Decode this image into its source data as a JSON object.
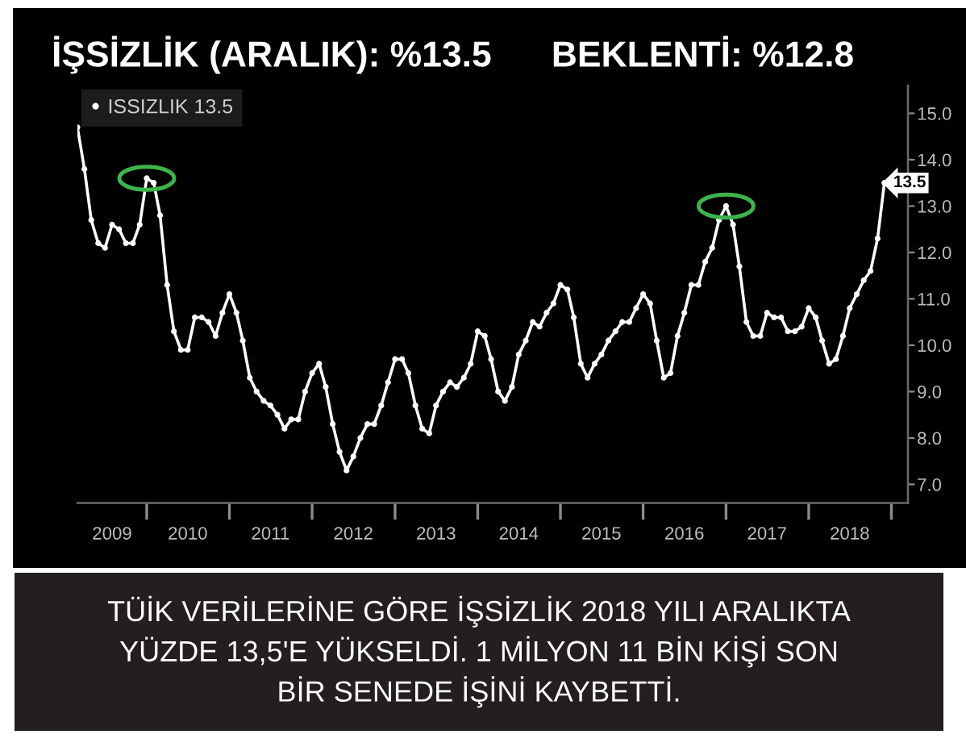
{
  "chart_data": {
    "type": "line",
    "title": "İŞSİZLİK (ARALIK): %13.5      BEKLENTİ: %12.8",
    "annotations": [
      "TÜİK VERİLERİNE GÖRE İŞSİZLİK 2018 YILI ARALIKTA\nYÜZDE 13,5'E YÜKSELDİ. 1 MİLYON 11 BİN KİŞİ SON\nBİR SENEDE İŞİNİ KAYBETTİ."
    ],
    "x": [
      "2009-03",
      "2009-04",
      "2009-05",
      "2009-06",
      "2009-07",
      "2009-08",
      "2009-09",
      "2009-10",
      "2009-11",
      "2009-12",
      "2010-01",
      "2010-02",
      "2010-03",
      "2010-04",
      "2010-05",
      "2010-06",
      "2010-07",
      "2010-08",
      "2010-09",
      "2010-10",
      "2010-11",
      "2010-12",
      "2011-01",
      "2011-02",
      "2011-03",
      "2011-04",
      "2011-05",
      "2011-06",
      "2011-07",
      "2011-08",
      "2011-09",
      "2011-10",
      "2011-11",
      "2011-12",
      "2012-01",
      "2012-02",
      "2012-03",
      "2012-04",
      "2012-05",
      "2012-06",
      "2012-07",
      "2012-08",
      "2012-09",
      "2012-10",
      "2012-11",
      "2012-12",
      "2013-01",
      "2013-02",
      "2013-03",
      "2013-04",
      "2013-05",
      "2013-06",
      "2013-07",
      "2013-08",
      "2013-09",
      "2013-10",
      "2013-11",
      "2013-12",
      "2014-01",
      "2014-02",
      "2014-03",
      "2014-04",
      "2014-05",
      "2014-06",
      "2014-07",
      "2014-08",
      "2014-09",
      "2014-10",
      "2014-11",
      "2014-12",
      "2015-01",
      "2015-02",
      "2015-03",
      "2015-04",
      "2015-05",
      "2015-06",
      "2015-07",
      "2015-08",
      "2015-09",
      "2015-10",
      "2015-11",
      "2015-12",
      "2016-01",
      "2016-02",
      "2016-03",
      "2016-04",
      "2016-05",
      "2016-06",
      "2016-07",
      "2016-08",
      "2016-09",
      "2016-10",
      "2016-11",
      "2016-12",
      "2017-01",
      "2017-02",
      "2017-03",
      "2017-04",
      "2017-05",
      "2017-06",
      "2017-07",
      "2017-08",
      "2017-09",
      "2017-10",
      "2017-11",
      "2017-12",
      "2018-01",
      "2018-02",
      "2018-03",
      "2018-04",
      "2018-05",
      "2018-06",
      "2018-07",
      "2018-08",
      "2018-09",
      "2018-10",
      "2018-11",
      "2018-12"
    ],
    "series": [
      {
        "name": "ISSIZLIK 13.5",
        "color": "#ffffff",
        "values": [
          14.7,
          13.8,
          12.7,
          12.2,
          12.1,
          12.6,
          12.5,
          12.2,
          12.2,
          12.6,
          13.6,
          13.5,
          12.8,
          11.3,
          10.3,
          9.9,
          9.9,
          10.6,
          10.6,
          10.5,
          10.2,
          10.7,
          11.1,
          10.7,
          10.1,
          9.3,
          9.0,
          8.8,
          8.7,
          8.5,
          8.2,
          8.4,
          8.4,
          9.0,
          9.4,
          9.6,
          9.1,
          8.3,
          7.7,
          7.3,
          7.6,
          8.0,
          8.3,
          8.3,
          8.7,
          9.2,
          9.7,
          9.7,
          9.4,
          8.7,
          8.2,
          8.1,
          8.7,
          9.0,
          9.2,
          9.1,
          9.3,
          9.6,
          10.3,
          10.2,
          9.7,
          9.0,
          8.8,
          9.1,
          9.8,
          10.1,
          10.5,
          10.4,
          10.7,
          10.9,
          11.3,
          11.2,
          10.6,
          9.6,
          9.3,
          9.6,
          9.8,
          10.1,
          10.3,
          10.5,
          10.5,
          10.8,
          11.1,
          10.9,
          10.1,
          9.3,
          9.4,
          10.2,
          10.7,
          11.3,
          11.3,
          11.8,
          12.1,
          12.7,
          13.0,
          12.6,
          11.7,
          10.5,
          10.2,
          10.2,
          10.7,
          10.6,
          10.6,
          10.3,
          10.3,
          10.4,
          10.8,
          10.6,
          10.1,
          9.6,
          9.7,
          10.2,
          10.8,
          11.1,
          11.4,
          11.6,
          12.3,
          13.5
        ],
        "value_labels": [
          null,
          null,
          null,
          null,
          null,
          null,
          null,
          null,
          null,
          null,
          null,
          null,
          null,
          null,
          null,
          null,
          null,
          null,
          null,
          null,
          null,
          null,
          null,
          null,
          null,
          null,
          null,
          null,
          null,
          null,
          null,
          null,
          null,
          null,
          null,
          null,
          null,
          null,
          null,
          null,
          null,
          null,
          null,
          null,
          null,
          null,
          null,
          null,
          null,
          null,
          null,
          null,
          null,
          null,
          null,
          null,
          null,
          null,
          null,
          null,
          null,
          null,
          null,
          null,
          null,
          null,
          null,
          null,
          null,
          null,
          null,
          null,
          null,
          null,
          null,
          null,
          null,
          null,
          null,
          null,
          null,
          null,
          null,
          null,
          null,
          null,
          null,
          null,
          null,
          null,
          null,
          null,
          null,
          null,
          null,
          null,
          null,
          null,
          null,
          null,
          null,
          null,
          null,
          null,
          null,
          null,
          null,
          null,
          null,
          null,
          null,
          null,
          null,
          null,
          null,
          null,
          null,
          "13.5"
        ]
      },
      {
        "type": "scatter",
        "color": "#3cb44b",
        "x": [
          "2010-01",
          "2017-01"
        ],
        "values": [
          13.6,
          13.0
        ]
      }
    ],
    "xlim": [
      "2009-03",
      "2019-03-15"
    ],
    "xticks": [
      {
        "value": "2009-08",
        "label": "2009"
      },
      {
        "value": "2010-01",
        "label": null
      },
      {
        "value": "2010-07",
        "label": "2010"
      },
      {
        "value": "2011-01",
        "label": null
      },
      {
        "value": "2011-07",
        "label": "2011"
      },
      {
        "value": "2012-01",
        "label": null
      },
      {
        "value": "2012-07",
        "label": "2012"
      },
      {
        "value": "2013-01",
        "label": null
      },
      {
        "value": "2013-07",
        "label": "2013"
      },
      {
        "value": "2014-01",
        "label": null
      },
      {
        "value": "2014-07",
        "label": "2014"
      },
      {
        "value": "2015-01",
        "label": null
      },
      {
        "value": "2015-07",
        "label": "2015"
      },
      {
        "value": "2016-01",
        "label": null
      },
      {
        "value": "2016-07",
        "label": "2016"
      },
      {
        "value": "2017-01",
        "label": null
      },
      {
        "value": "2017-07",
        "label": "2017"
      },
      {
        "value": "2018-01",
        "label": null
      },
      {
        "value": "2018-07",
        "label": "2018"
      },
      {
        "value": "2019-01",
        "label": null
      }
    ],
    "ylim": [
      6.6,
      15.6
    ],
    "yticks": [
      {
        "value": 7,
        "label": "7.0"
      },
      {
        "value": 8,
        "label": "8.0"
      },
      {
        "value": 9,
        "label": "9.0"
      },
      {
        "value": 10,
        "label": "10.0"
      },
      {
        "value": 11,
        "label": "11.0"
      },
      {
        "value": 12,
        "label": "12.0"
      },
      {
        "value": 13,
        "label": "13.0"
      },
      {
        "value": 14,
        "label": "14.0"
      },
      {
        "value": 15,
        "label": "15.0"
      }
    ],
    "legend": "top left",
    "marker": "circle",
    "line_style": "solid"
  }
}
